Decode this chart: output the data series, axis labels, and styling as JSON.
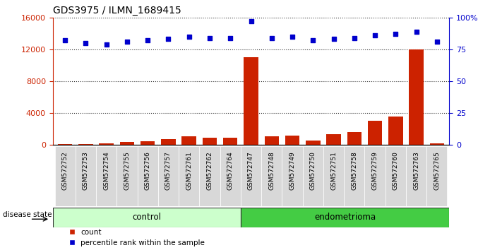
{
  "title": "GDS3975 / ILMN_1689415",
  "samples": [
    "GSM572752",
    "GSM572753",
    "GSM572754",
    "GSM572755",
    "GSM572756",
    "GSM572757",
    "GSM572761",
    "GSM572762",
    "GSM572764",
    "GSM572747",
    "GSM572748",
    "GSM572749",
    "GSM572750",
    "GSM572751",
    "GSM572758",
    "GSM572759",
    "GSM572760",
    "GSM572763",
    "GSM572765"
  ],
  "counts": [
    100,
    150,
    200,
    350,
    500,
    750,
    1050,
    950,
    900,
    11000,
    1050,
    1200,
    550,
    1400,
    1600,
    3000,
    3600,
    12000,
    200
  ],
  "percentile_ranks": [
    82,
    80,
    79,
    81,
    82,
    83,
    85,
    84,
    84,
    97,
    84,
    85,
    82,
    83,
    84,
    86,
    87,
    89,
    81
  ],
  "control_count": 9,
  "endometrioma_count": 10,
  "bar_color": "#cc2200",
  "dot_color": "#0000cc",
  "control_bg": "#ccffcc",
  "endometrioma_bg": "#44cc44",
  "ylim_left": [
    0,
    16000
  ],
  "ylim_right": [
    0,
    100
  ],
  "yticks_left": [
    0,
    4000,
    8000,
    12000,
    16000
  ],
  "yticks_right": [
    0,
    25,
    50,
    75,
    100
  ],
  "yticklabels_right": [
    "0",
    "25",
    "50",
    "75",
    "100%"
  ],
  "legend_count_label": "count",
  "legend_pct_label": "percentile rank within the sample",
  "disease_state_label": "disease state",
  "control_label": "control",
  "endometrioma_label": "endometrioma"
}
